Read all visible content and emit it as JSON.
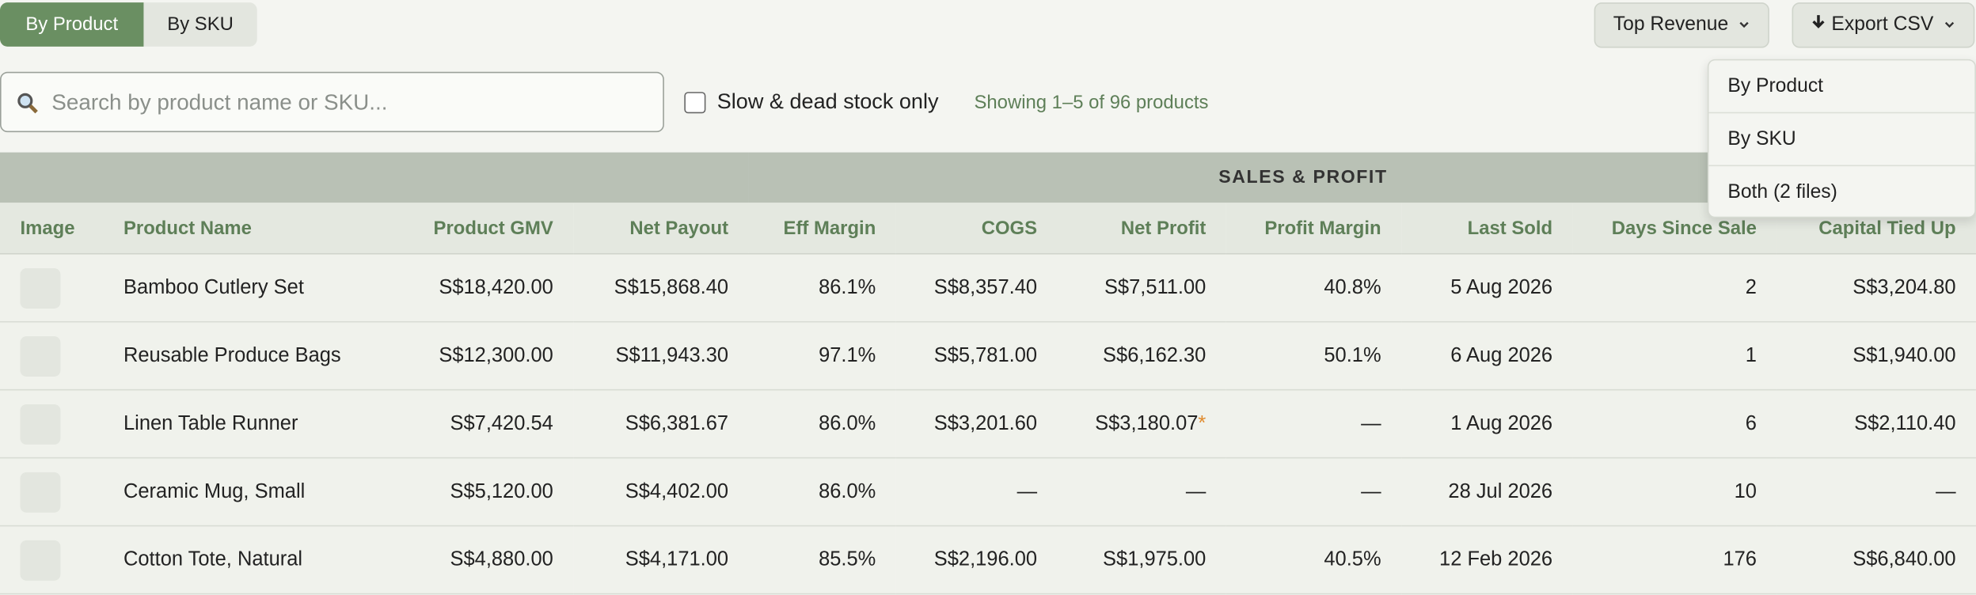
{
  "toolbar": {
    "view_tabs": [
      "By Product",
      "By SKU"
    ],
    "sort_button": "Top Revenue",
    "export_button": "Export CSV"
  },
  "search": {
    "placeholder": "Search by product name or SKU...",
    "filter_label": "Slow & dead stock only",
    "status": "Showing 1–5 of 96 products"
  },
  "export_menu": {
    "items": [
      "By Product",
      "By SKU",
      "Both (2 files)"
    ]
  },
  "table": {
    "group_header": "SALES & PROFIT",
    "columns": [
      "Image",
      "Product Name",
      "Product GMV",
      "Net Payout",
      "Eff Margin",
      "COGS",
      "Net Profit",
      "Profit Margin",
      "Last Sold",
      "Days Since Sale",
      "Capital Tied Up"
    ],
    "rows": [
      [
        "Bamboo Cutlery Set",
        "S$18,420.00",
        "S$15,868.40",
        "86.1%",
        "S$8,357.40",
        "S$7,511.00",
        "40.8%",
        "5 Aug 2026",
        "2",
        "S$3,204.80"
      ],
      [
        "Reusable Produce Bags",
        "S$12,300.00",
        "S$11,943.30",
        "97.1%",
        "S$5,781.00",
        "S$6,162.30",
        "50.1%",
        "6 Aug 2026",
        "1",
        "S$1,940.00"
      ],
      [
        "Linen Table Runner",
        "S$7,420.54",
        "S$6,381.67",
        "86.0%",
        "S$3,201.60",
        {
          "text": "S$3,180.07",
          "mark": "*"
        },
        "—",
        "1 Aug 2026",
        "6",
        "S$2,110.40"
      ],
      [
        "Ceramic Mug, Small",
        "S$5,120.00",
        "S$4,402.00",
        "86.0%",
        "—",
        "—",
        "—",
        "28 Jul 2026",
        "10",
        "—"
      ],
      [
        "Cotton Tote, Natural",
        "S$4,880.00",
        "S$4,171.00",
        "85.5%",
        "S$2,196.00",
        "S$1,975.00",
        "40.5%",
        "12 Feb 2026",
        "176",
        "S$6,840.00"
      ]
    ]
  }
}
